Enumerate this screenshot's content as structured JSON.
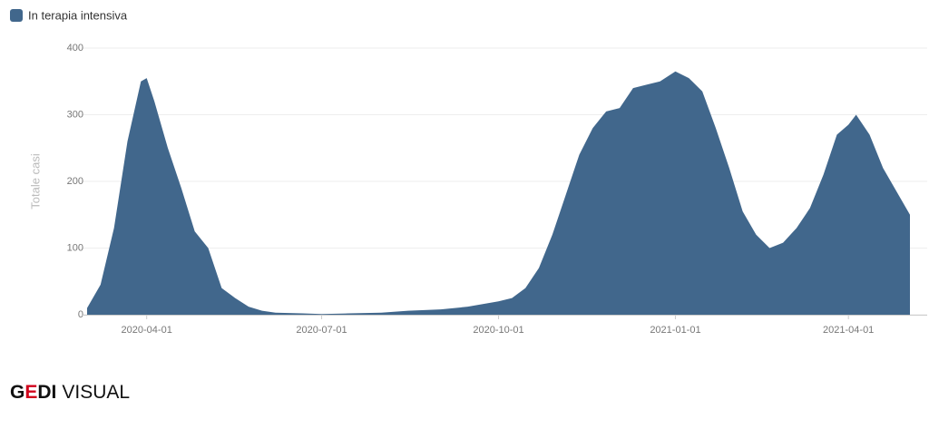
{
  "chart_data": {
    "type": "area",
    "y_label": "Totale casi",
    "x": [
      "2020-03-01",
      "2020-03-08",
      "2020-03-15",
      "2020-03-22",
      "2020-03-29",
      "2020-04-01",
      "2020-04-05",
      "2020-04-12",
      "2020-04-19",
      "2020-04-26",
      "2020-05-03",
      "2020-05-10",
      "2020-05-17",
      "2020-05-24",
      "2020-05-31",
      "2020-06-07",
      "2020-06-21",
      "2020-07-01",
      "2020-07-15",
      "2020-08-01",
      "2020-08-15",
      "2020-09-01",
      "2020-09-15",
      "2020-10-01",
      "2020-10-08",
      "2020-10-15",
      "2020-10-22",
      "2020-10-29",
      "2020-11-05",
      "2020-11-12",
      "2020-11-19",
      "2020-11-26",
      "2020-12-03",
      "2020-12-10",
      "2020-12-17",
      "2020-12-24",
      "2021-01-01",
      "2021-01-08",
      "2021-01-15",
      "2021-01-22",
      "2021-01-29",
      "2021-02-05",
      "2021-02-12",
      "2021-02-19",
      "2021-02-26",
      "2021-03-05",
      "2021-03-12",
      "2021-03-19",
      "2021-03-26",
      "2021-04-01",
      "2021-04-05",
      "2021-04-12",
      "2021-04-19",
      "2021-04-26",
      "2021-05-03"
    ],
    "series": [
      {
        "name": "In terapia intensiva",
        "color": "#41678c",
        "values": [
          10,
          45,
          130,
          260,
          350,
          355,
          320,
          250,
          190,
          125,
          100,
          40,
          25,
          12,
          6,
          3,
          2,
          1,
          2,
          3,
          6,
          8,
          12,
          20,
          25,
          40,
          70,
          120,
          180,
          240,
          280,
          305,
          310,
          340,
          345,
          350,
          365,
          355,
          335,
          280,
          220,
          155,
          120,
          100,
          108,
          130,
          160,
          210,
          270,
          285,
          300,
          270,
          220,
          185,
          150
        ]
      }
    ],
    "xlim": [
      "2020-03-01",
      "2021-05-03"
    ],
    "xticks": [
      "2020-04-01",
      "2020-07-01",
      "2020-10-01",
      "2021-01-01",
      "2021-04-01"
    ],
    "ylim": [
      0,
      400
    ],
    "yticks": [
      0,
      100,
      200,
      300,
      400
    ],
    "grid": true
  },
  "logo": {
    "parts": [
      "G",
      "E",
      "DI",
      "VISUAL"
    ]
  }
}
